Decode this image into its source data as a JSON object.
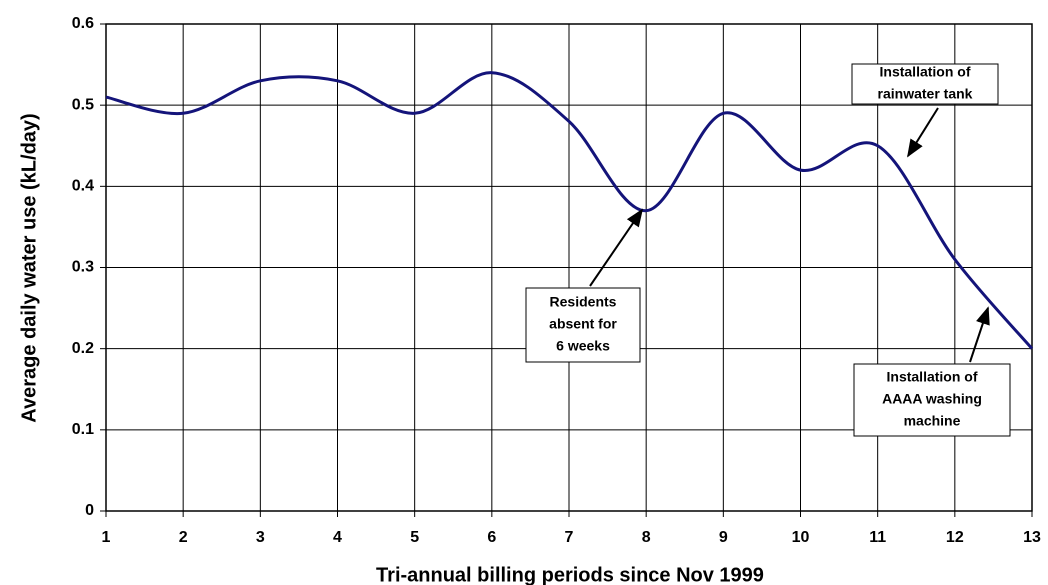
{
  "chart_data": {
    "type": "line",
    "x_label": "Tri-annual billing periods since Nov 1999",
    "y_label": "Average daily water use (kL/day)",
    "x": [
      1,
      2,
      3,
      4,
      5,
      6,
      7,
      8,
      9,
      10,
      11,
      12,
      13
    ],
    "series": [
      {
        "color": "#14147a",
        "values": [
          0.51,
          0.49,
          0.53,
          0.53,
          0.49,
          0.54,
          0.48,
          0.37,
          0.49,
          0.42,
          0.45,
          0.31,
          0.2
        ]
      }
    ],
    "xlim": [
      1,
      13
    ],
    "xticks": [
      1,
      2,
      3,
      4,
      5,
      6,
      7,
      8,
      9,
      10,
      11,
      12,
      13
    ],
    "ylim": [
      0,
      0.6
    ],
    "yticks": [
      0,
      0.1,
      0.2,
      0.3,
      0.4,
      0.5,
      0.6
    ],
    "grid": true,
    "annotations": [
      {
        "text": [
          "Installation of",
          "rainwater tank"
        ]
      },
      {
        "text": [
          "Residents",
          "absent for",
          "6 weeks"
        ]
      },
      {
        "text": [
          "Installation of",
          "AAAA washing",
          "machine"
        ]
      }
    ]
  }
}
